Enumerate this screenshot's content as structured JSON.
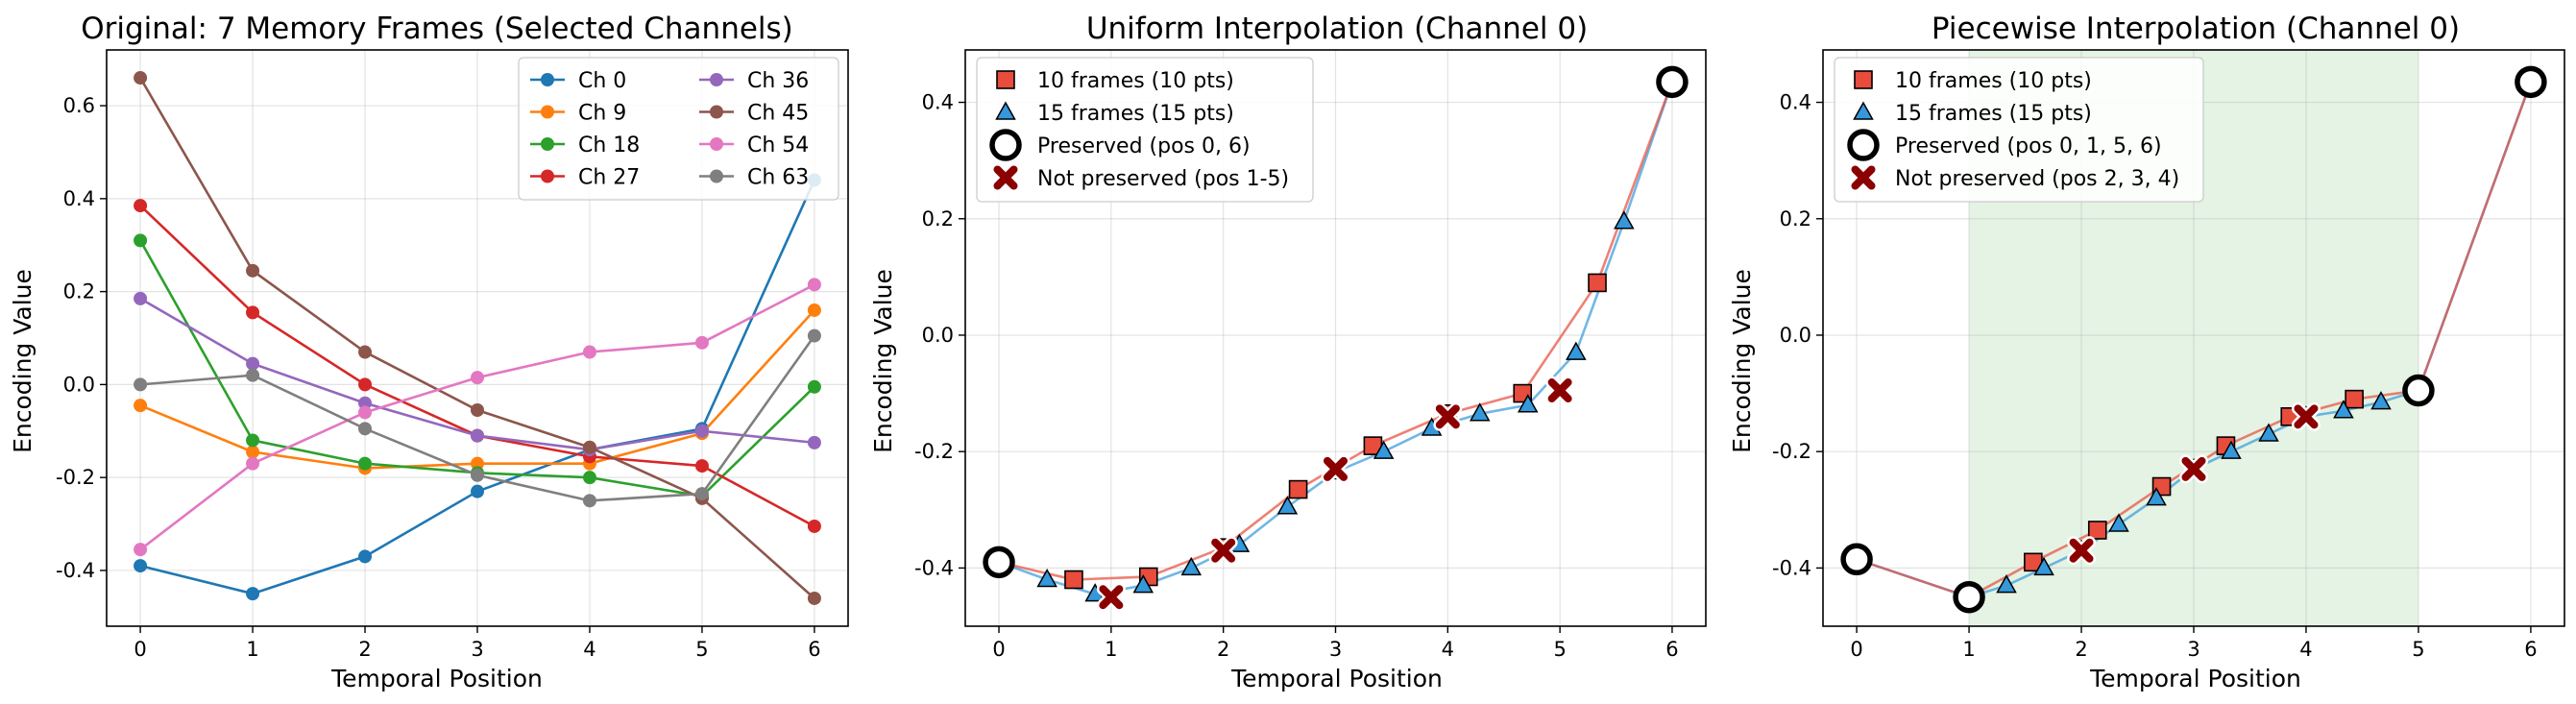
{
  "chart_data": [
    {
      "type": "line",
      "title": "Original: 7 Memory Frames (Selected Channels)",
      "xlabel": "Temporal Position",
      "ylabel": "Encoding Value",
      "xlim": [
        -0.3,
        6.3
      ],
      "ylim": [
        -0.52,
        0.72
      ],
      "xticks": [
        "0",
        "1",
        "2",
        "3",
        "4",
        "5",
        "6"
      ],
      "yticks": [
        "-0.4",
        "-0.2",
        "0.0",
        "0.2",
        "0.4",
        "0.6"
      ],
      "grid": true,
      "legend_position": "top-right",
      "legend_columns": 2,
      "x": [
        0,
        1,
        2,
        3,
        4,
        5,
        6
      ],
      "series": [
        {
          "name": "Ch 0",
          "color": "#1f77b4",
          "values": [
            -0.39,
            -0.45,
            -0.37,
            -0.23,
            -0.14,
            -0.095,
            0.44
          ]
        },
        {
          "name": "Ch 9",
          "color": "#ff7f0e",
          "values": [
            -0.045,
            -0.145,
            -0.18,
            -0.17,
            -0.17,
            -0.105,
            0.16
          ]
        },
        {
          "name": "Ch 18",
          "color": "#2ca02c",
          "values": [
            0.31,
            -0.12,
            -0.17,
            -0.19,
            -0.2,
            -0.24,
            -0.005
          ]
        },
        {
          "name": "Ch 27",
          "color": "#d62728",
          "values": [
            0.385,
            0.155,
            0.0,
            -0.11,
            -0.155,
            -0.175,
            -0.305
          ]
        },
        {
          "name": "Ch 36",
          "color": "#9467bd",
          "values": [
            0.185,
            0.045,
            -0.04,
            -0.11,
            -0.14,
            -0.1,
            -0.125
          ]
        },
        {
          "name": "Ch 45",
          "color": "#8c564b",
          "values": [
            0.66,
            0.245,
            0.07,
            -0.055,
            -0.135,
            -0.245,
            -0.46
          ]
        },
        {
          "name": "Ch 54",
          "color": "#e377c2",
          "values": [
            -0.355,
            -0.17,
            -0.06,
            0.015,
            0.07,
            0.09,
            0.215
          ]
        },
        {
          "name": "Ch 63",
          "color": "#7f7f7f",
          "values": [
            0.0,
            0.02,
            -0.095,
            -0.195,
            -0.25,
            -0.235,
            0.105
          ]
        }
      ]
    },
    {
      "type": "scatter",
      "title": "Uniform Interpolation (Channel 0)",
      "xlabel": "Temporal Position",
      "ylabel": "Encoding Value",
      "xlim": [
        -0.3,
        6.3
      ],
      "ylim": [
        -0.5,
        0.49
      ],
      "xticks": [
        "0",
        "1",
        "2",
        "3",
        "4",
        "5",
        "6"
      ],
      "yticks": [
        "-0.4",
        "-0.2",
        "0.0",
        "0.2",
        "0.4"
      ],
      "grid": true,
      "legend_position": "top-left",
      "series": [
        {
          "name": "10 frames (10 pts)",
          "marker": "square",
          "color": "#e74c3c",
          "x": [
            0,
            0.667,
            1.333,
            2,
            2.667,
            3.333,
            4,
            4.667,
            5.333,
            6
          ],
          "values": [
            -0.39,
            -0.42,
            -0.415,
            -0.365,
            -0.265,
            -0.19,
            -0.135,
            -0.1,
            0.09,
            0.435
          ]
        },
        {
          "name": "15 frames (15 pts)",
          "marker": "triangle",
          "color": "#3498db",
          "x": [
            0,
            0.429,
            0.857,
            1.286,
            1.714,
            2.143,
            2.571,
            3,
            3.429,
            3.857,
            4.286,
            4.714,
            5.143,
            5.571,
            6
          ],
          "values": [
            -0.39,
            -0.42,
            -0.445,
            -0.43,
            -0.4,
            -0.36,
            -0.295,
            -0.235,
            -0.2,
            -0.16,
            -0.135,
            -0.12,
            -0.03,
            0.195,
            0.435
          ]
        },
        {
          "name": "Preserved (pos 0, 6)",
          "marker": "ring",
          "x": [
            0,
            6
          ],
          "values": [
            -0.39,
            0.435
          ]
        },
        {
          "name": "Not preserved (pos 1-5)",
          "marker": "x",
          "color": "#8b0000",
          "x": [
            1,
            2,
            3,
            4,
            5
          ],
          "values": [
            -0.45,
            -0.37,
            -0.23,
            -0.14,
            -0.095
          ]
        }
      ]
    },
    {
      "type": "scatter",
      "title": "Piecewise Interpolation (Channel 0)",
      "xlabel": "Temporal Position",
      "ylabel": "Encoding Value",
      "xlim": [
        -0.3,
        6.3
      ],
      "ylim": [
        -0.5,
        0.49
      ],
      "xticks": [
        "0",
        "1",
        "2",
        "3",
        "4",
        "5",
        "6"
      ],
      "yticks": [
        "-0.4",
        "-0.2",
        "0.0",
        "0.2",
        "0.4"
      ],
      "grid": true,
      "legend_position": "top-left",
      "shaded_region": {
        "x0": 1,
        "x1": 5,
        "color": "#2ca02c"
      },
      "series": [
        {
          "name": "10 frames (10 pts)",
          "marker": "square",
          "color": "#e74c3c",
          "x": [
            0,
            1,
            1.571,
            2.143,
            2.714,
            3.286,
            3.857,
            4.429,
            5,
            6
          ],
          "values": [
            -0.385,
            -0.45,
            -0.39,
            -0.335,
            -0.26,
            -0.19,
            -0.14,
            -0.11,
            -0.095,
            0.435
          ]
        },
        {
          "name": "15 frames (15 pts)",
          "marker": "triangle",
          "color": "#3498db",
          "x": [
            0,
            1,
            1.333,
            1.667,
            2,
            2.333,
            2.667,
            3,
            3.333,
            3.667,
            4,
            4.333,
            4.667,
            5,
            6
          ],
          "values": [
            -0.385,
            -0.45,
            -0.43,
            -0.4,
            -0.37,
            -0.325,
            -0.28,
            -0.23,
            -0.2,
            -0.17,
            -0.14,
            -0.13,
            -0.115,
            -0.095,
            0.435
          ]
        },
        {
          "name": "Preserved (pos 0, 1, 5, 6)",
          "marker": "ring",
          "x": [
            0,
            1,
            5,
            6
          ],
          "values": [
            -0.385,
            -0.45,
            -0.095,
            0.435
          ]
        },
        {
          "name": "Not preserved (pos 2, 3, 4)",
          "marker": "x",
          "color": "#8b0000",
          "x": [
            2,
            3,
            4
          ],
          "values": [
            -0.37,
            -0.23,
            -0.14
          ]
        }
      ]
    }
  ]
}
